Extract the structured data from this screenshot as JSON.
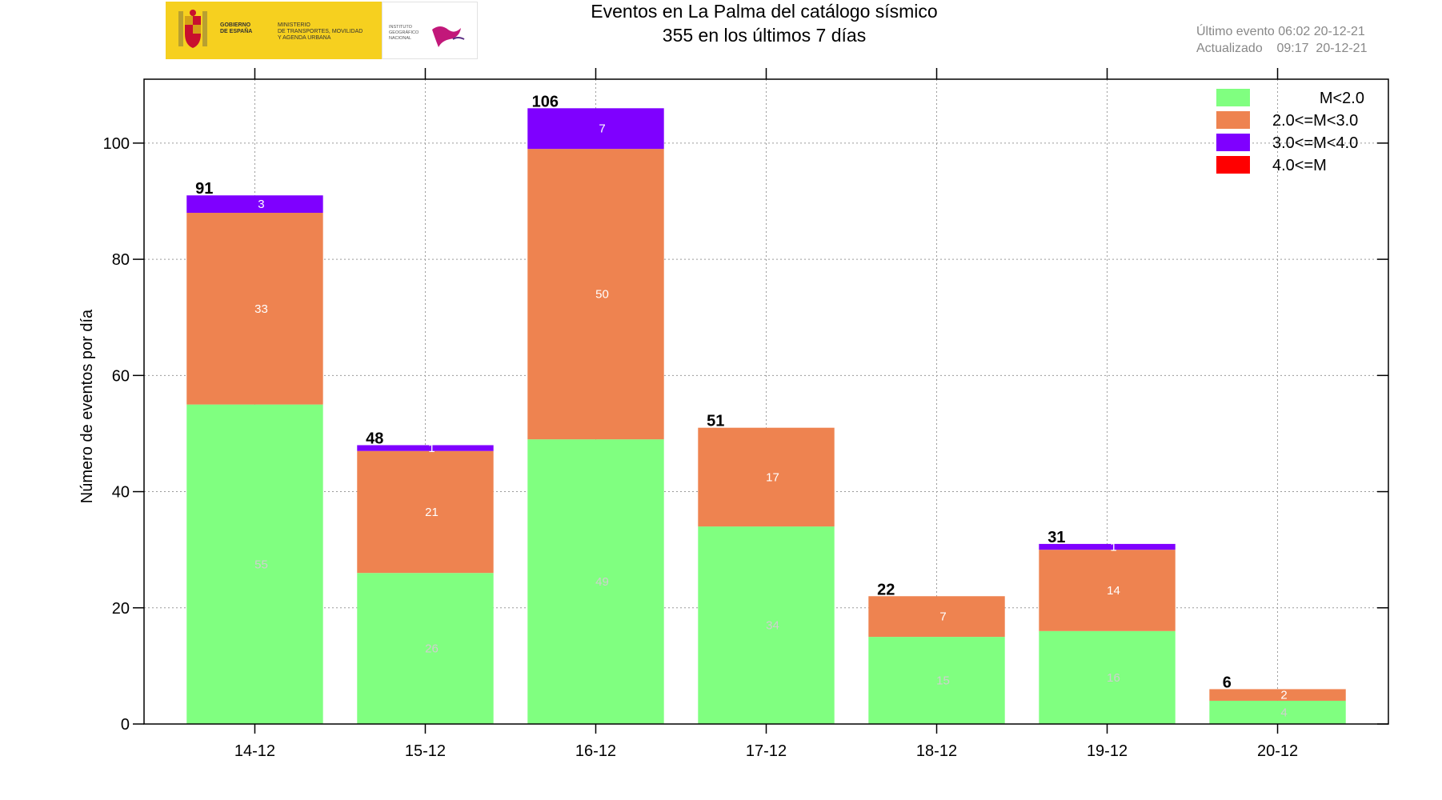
{
  "header": {
    "title_line1": "Eventos en La Palma del catálogo sísmico",
    "title_line2": "355 en los últimos 7 días",
    "last_event": "Último evento 06:02 20-12-21",
    "updated": "Actualizado    09:17  20-12-21"
  },
  "logo": {
    "gov": "GOBIERNO\nDE ESPAÑA",
    "ministry": "MINISTERIO\nDE TRANSPORTES, MOVILIDAD\nY AGENDA URBANA",
    "institute": "INSTITUTO\nGEOGRÁFICO\nNACIONAL"
  },
  "colors": {
    "m_lt_2": "#80ff80",
    "m_2_3": "#ee8350",
    "m_3_4": "#7f00ff",
    "m_ge_4": "#ff0000"
  },
  "chart_data": {
    "type": "bar",
    "stacked": true,
    "categories": [
      "14-12",
      "15-12",
      "16-12",
      "17-12",
      "18-12",
      "19-12",
      "20-12"
    ],
    "series": [
      {
        "name": "M<2.0",
        "color": "#80ff80",
        "values": [
          55,
          26,
          49,
          34,
          15,
          16,
          4
        ]
      },
      {
        "name": "2.0<=M<3.0",
        "color": "#ee8350",
        "values": [
          33,
          21,
          50,
          17,
          7,
          14,
          2
        ]
      },
      {
        "name": "3.0<=M<4.0",
        "color": "#7f00ff",
        "values": [
          3,
          1,
          7,
          0,
          0,
          1,
          0
        ]
      },
      {
        "name": "4.0<=M",
        "color": "#ff0000",
        "values": [
          0,
          0,
          0,
          0,
          0,
          0,
          0
        ]
      }
    ],
    "totals": [
      91,
      48,
      106,
      51,
      22,
      31,
      6
    ],
    "segment_labels": [
      [
        "55",
        "26",
        "49",
        "34",
        "15",
        "16",
        "4"
      ],
      [
        "33",
        "21",
        "50",
        "17",
        "7",
        "14",
        "2"
      ],
      [
        "3",
        "1",
        "7",
        "",
        "",
        "1",
        ""
      ]
    ],
    "ylabel": "Número de eventos por día",
    "xlabel": "",
    "ylim": [
      0,
      111
    ],
    "yticks": [
      0,
      20,
      40,
      60,
      80,
      100
    ],
    "grid": true,
    "legend_position": "top-right"
  }
}
